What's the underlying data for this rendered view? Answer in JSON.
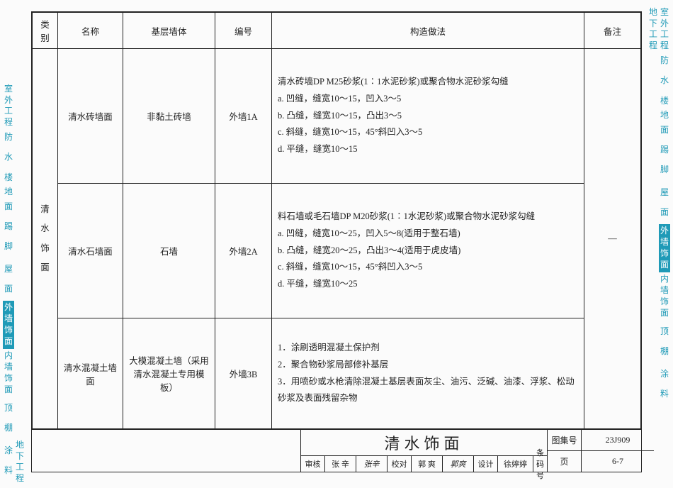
{
  "side_tabs": {
    "items": [
      {
        "label": "室外工程",
        "h": 62
      },
      {
        "label": "地下工程",
        "h": 62
      },
      {
        "label": "防水",
        "h": 60
      },
      {
        "label": "楼地面",
        "h": 66
      },
      {
        "label": "踢脚",
        "h": 60
      },
      {
        "label": "屋面",
        "h": 60
      },
      {
        "label": "外墙饰面",
        "h": 68,
        "active": true
      },
      {
        "label": "内墙饰面",
        "h": 68
      },
      {
        "label": "顶棚",
        "h": 60
      },
      {
        "label": "涂料",
        "h": 60
      }
    ]
  },
  "columns": {
    "category": "类别",
    "name": "名称",
    "base": "基层墙体",
    "code": "编号",
    "desc": "构造做法",
    "note": "备注"
  },
  "category_label": "清水饰面",
  "rows": [
    {
      "name": "清水砖墙面",
      "base": "非黏土砖墙",
      "code": "外墙1A",
      "desc": [
        "清水砖墙DP M25砂浆(1∶1水泥砂浆)或聚合物水泥砂浆勾缝",
        "a. 凹缝，缝宽10～15，凹入3～5",
        "b. 凸缝，缝宽10～15，凸出3～5",
        "c. 斜缝，缝宽10～15，45°斜凹入3～5",
        "d. 平缝，缝宽10～15"
      ]
    },
    {
      "name": "清水石墙面",
      "base": "石墙",
      "code": "外墙2A",
      "desc": [
        "料石墙或毛石墙DP M20砂浆(1∶1水泥砂浆)或聚合物水泥砂浆勾缝",
        "a. 凹缝，缝宽10～25，凹入5～8(适用于整石墙)",
        "b. 凸缝，缝宽20～25，凸出3～4(适用于虎皮墙)",
        "c. 斜缝，缝宽10～15，45°斜凹入3～5",
        "d. 平缝，缝宽10～25"
      ]
    },
    {
      "name": "清水混凝土墙面",
      "base": "大模混凝土墙（采用清水混凝土专用模板）",
      "code": "外墙3B",
      "desc": [
        "1．涂刷透明混凝土保护剂",
        "2．聚合物砂浆局部修补基层",
        "3．用喷砂或水枪清除混凝土基层表面灰尘、油污、泛碱、油漆、浮浆、松动砂浆及表面残留杂物"
      ]
    }
  ],
  "note_mark": "—",
  "footer": {
    "title": "清水饰面",
    "set_label": "图集号",
    "set_value": "23J909",
    "page_label": "页",
    "page_value": "6-7",
    "meta": {
      "review_l": "审核",
      "review_n": "张 辛",
      "review_s": "张辛",
      "check_l": "校对",
      "check_n": "郭 爽",
      "check_s": "郭爽",
      "design_l": "设计",
      "design_n": "徐婷婷",
      "design_s": "徐婷婷",
      "pcode_l": "条码号"
    }
  }
}
